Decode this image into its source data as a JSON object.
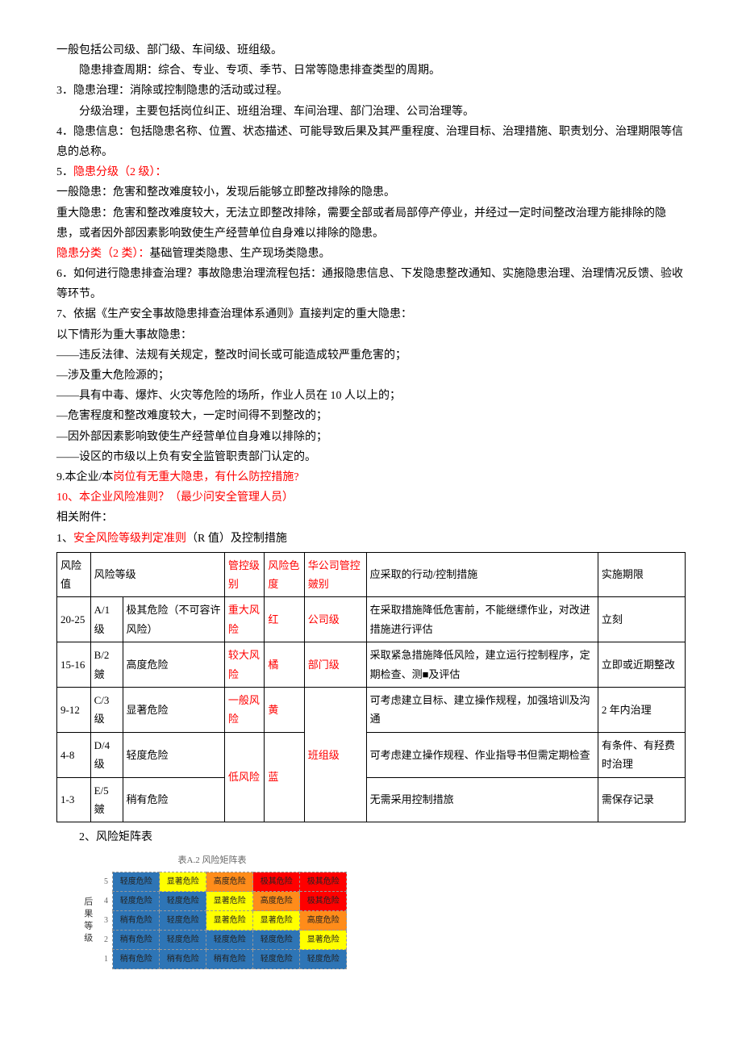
{
  "paragraphs": {
    "p1": "一般包括公司级、部门级、车间级、班组级。",
    "p2": "隐患排查周期：综合、专业、专项、季节、日常等隐患排查类型的周期。",
    "p3": "3．隐患治理：消除或控制隐患的活动或过程。",
    "p4": "分级治理，主要包括岗位纠正、班组治理、车间治理、部门治理、公司治理等。",
    "p5": "4．隐患信息：包括隐患名称、位置、状态描述、可能导致后果及其严重程度、治理目标、治理措施、职责划分、治理期限等信息的总称。",
    "p6a": "5．",
    "p6b": "隐患分级（2 级）：",
    "p7": "一般隐患：危害和整改难度较小，发现后能够立即整改排除的隐患。",
    "p8": "重大隐患：危害和整改难度较大，无法立即整改排除，需要全部或者局部停产停业，并经过一定时间整改治理方能排除的隐患，或者因外部因素影响致使生产经营单位自身难以排除的隐患。",
    "p9a": "隐患分类（2 类）：",
    "p9b": "基础管理类隐患、生产现场类隐患。",
    "p10": "6．如何进行隐患排查治理？事故隐患治理流程包括：通报隐患信息、下发隐患整改通知、实施隐患治理、治理情况反馈、验收等环节。",
    "p11": "7、依据《生产安全事故隐患排查治理体系通则》直接判定的重大隐患：",
    "p12": "以下情形为重大事故隐患：",
    "p13": "——违反法律、法规有关规定，整改时间长或可能造成较严重危害的；",
    "p14": "—涉及重大危险源的；",
    "p15": "——具有中毒、爆炸、火灾等危险的场所，作业人员在 10 人以上的；",
    "p16": "—危害程度和整改难度较大，一定时间得不到整改的；",
    "p17": "—因外部因素影响致使生产经营单位自身难以排除的；",
    "p18": "——设区的市级以上负有安全监管职责部门认定的。",
    "p19a": "9.本企业/本",
    "p19b": "岗位有无重大隐患，有什么防控措施?",
    "p20": "10、本企业风险准则？（最少问安全管理人员）",
    "p21": "相关附件：",
    "p22a": "1、",
    "p22b": "安全风险等级判定准则",
    "p22c": "（R 值）及控制措施",
    "p23": "2、风险矩阵表"
  },
  "table1": {
    "headers": {
      "c1": "风险值",
      "c2": "风险等级",
      "c3": "管控级别",
      "c4": "风险色度",
      "c5": "华公司管控皴别",
      "c6": "应采取的行动/控制措施",
      "c7": "实施期限"
    },
    "rows": [
      {
        "val": "20-25",
        "grade": "A/1 级",
        "danger": "极其危险（不可容许风险）",
        "ctrl": "重大风险",
        "color": "红",
        "level": "公司级",
        "action": "在采取措施降低危害前，不能继缥作业，对改进措施进行评估",
        "deadline": "立刻"
      },
      {
        "val": "15-16",
        "grade": "B/2 皴",
        "danger": "高度危险",
        "ctrl": "较大风险",
        "color": "橘",
        "level": "部门级",
        "action": "采取紧急措施降低风险，建立运行控制程序，定期检查、测■及评估",
        "deadline": "立即或近期整改"
      },
      {
        "val": "9-12",
        "grade": "C/3 级",
        "danger": "显著危险",
        "ctrl": "一般风险",
        "color": "黄",
        "level": "",
        "action": "可考虑建立目标、建立操作规程，加强培训及沟通",
        "deadline": "2 年内治理"
      },
      {
        "val": "4-8",
        "grade": "D/4 级",
        "danger": "轻度危险",
        "ctrl": "低风险",
        "color": "蓝",
        "level": "班组级",
        "action": "可考虑建立操作规程、作业指导书但需定期检查",
        "deadline": "有条件、有羟费时治理"
      },
      {
        "val": "1-3",
        "grade": "E/5 皴",
        "danger": "稍有危险",
        "ctrl": "",
        "color": "",
        "level": "",
        "action": "无需采用控制措旅",
        "deadline": "需保存记录"
      }
    ]
  },
  "matrix": {
    "title": "表A.2  风险矩阵表",
    "ylabel": "后果等级",
    "rows": [
      {
        "n": "5",
        "cells": [
          {
            "t": "轻度危险",
            "c": "blue"
          },
          {
            "t": "显著危险",
            "c": "yellow"
          },
          {
            "t": "高度危险",
            "c": "orange"
          },
          {
            "t": "极其危险",
            "c": "redbg"
          },
          {
            "t": "极其危险",
            "c": "redbg"
          }
        ]
      },
      {
        "n": "4",
        "cells": [
          {
            "t": "轻度危险",
            "c": "blue"
          },
          {
            "t": "轻度危险",
            "c": "blue"
          },
          {
            "t": "显著危险",
            "c": "yellow"
          },
          {
            "t": "高度危险",
            "c": "orange"
          },
          {
            "t": "极其危险",
            "c": "redbg"
          }
        ]
      },
      {
        "n": "3",
        "cells": [
          {
            "t": "稍有危险",
            "c": "blue"
          },
          {
            "t": "轻度危险",
            "c": "blue"
          },
          {
            "t": "显著危险",
            "c": "yellow"
          },
          {
            "t": "显著危险",
            "c": "yellow"
          },
          {
            "t": "高度危险",
            "c": "orange"
          }
        ]
      },
      {
        "n": "2",
        "cells": [
          {
            "t": "稍有危险",
            "c": "blue"
          },
          {
            "t": "轻度危险",
            "c": "blue"
          },
          {
            "t": "轻度危险",
            "c": "blue"
          },
          {
            "t": "轻度危险",
            "c": "blue"
          },
          {
            "t": "显著危险",
            "c": "yellow"
          }
        ]
      },
      {
        "n": "1",
        "cells": [
          {
            "t": "稍有危险",
            "c": "blue"
          },
          {
            "t": "稍有危险",
            "c": "blue"
          },
          {
            "t": "稍有危险",
            "c": "blue"
          },
          {
            "t": "轻度危险",
            "c": "blue"
          },
          {
            "t": "轻度危险",
            "c": "blue"
          }
        ]
      }
    ]
  },
  "colors": {
    "red_text": "#ff0000",
    "matrix_blue": "#2e75b6",
    "matrix_yellow": "#ffff00",
    "matrix_orange": "#ff8c1a",
    "matrix_red": "#ff0000"
  }
}
